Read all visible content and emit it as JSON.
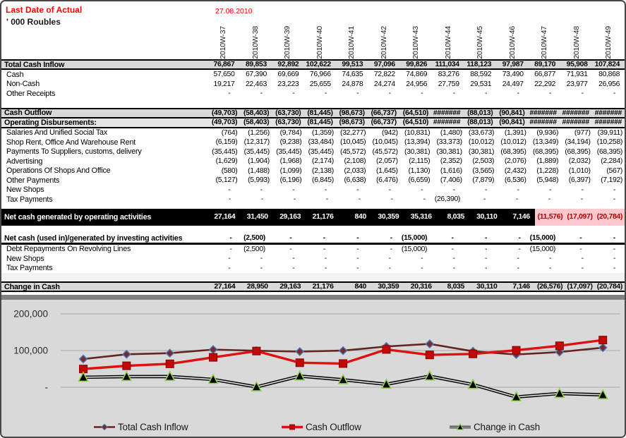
{
  "header": {
    "last_date_label": "Last Date of Actual",
    "last_date_value": "27.08.2010",
    "units": "' 000 Roubles"
  },
  "columns": [
    "2010W-37",
    "2010W-38",
    "2010W-39",
    "2010W-40",
    "2010W-41",
    "2010W-42",
    "2010W-43",
    "2010W-44",
    "2010W-45",
    "2010W-46",
    "2010W-47",
    "2010W-48",
    "2010W-49"
  ],
  "rows": [
    {
      "label": "Total Cash Inflow",
      "type": "section",
      "values": [
        "76,867",
        "89,853",
        "92,892",
        "102,622",
        "99,513",
        "97,096",
        "99,826",
        "111,034",
        "118,123",
        "97,987",
        "89,170",
        "95,908",
        "107,824"
      ]
    },
    {
      "label": "Cash",
      "type": "detail",
      "values": [
        "57,650",
        "67,390",
        "69,669",
        "76,966",
        "74,635",
        "72,822",
        "74,869",
        "83,276",
        "88,592",
        "73,490",
        "66,877",
        "71,931",
        "80,868"
      ]
    },
    {
      "label": "Non-Cash",
      "type": "detail",
      "values": [
        "19,217",
        "22,463",
        "23,223",
        "25,655",
        "24,878",
        "24,274",
        "24,956",
        "27,759",
        "29,531",
        "24,497",
        "22,292",
        "23,977",
        "26,956"
      ]
    },
    {
      "label": "Other Receipts",
      "type": "detail",
      "values": [
        "-",
        "-",
        "-",
        "-",
        "-",
        "-",
        "-",
        "-",
        "-",
        "-",
        "-",
        "-",
        "-"
      ]
    },
    {
      "label": "",
      "type": "spacer",
      "values": []
    },
    {
      "label": "Cash Outflow",
      "type": "section",
      "values": [
        "(49,703)",
        "(58,403)",
        "(63,730)",
        "(81,445)",
        "(98,673)",
        "(66,737)",
        "(64,510)",
        "#######",
        "(88,013)",
        "(90,841)",
        "#######",
        "#######",
        "#######"
      ]
    },
    {
      "label": "Operating Disbursements:",
      "type": "subsection",
      "values": [
        "(49,703)",
        "(58,403)",
        "(63,730)",
        "(81,445)",
        "(98,673)",
        "(66,737)",
        "(64,510)",
        "#######",
        "(88,013)",
        "(90,841)",
        "#######",
        "#######",
        "#######"
      ]
    },
    {
      "label": "Salaries And Unified Social Tax",
      "type": "detail",
      "values": [
        "(764)",
        "(1,256)",
        "(9,784)",
        "(1,359)",
        "(32,277)",
        "(942)",
        "(10,831)",
        "(1,480)",
        "(33,673)",
        "(1,391)",
        "(9,936)",
        "(977)",
        "(39,911)"
      ]
    },
    {
      "label": "Shop Rent, Office And Warehouse Rent",
      "type": "detail",
      "values": [
        "(6,159)",
        "(12,317)",
        "(9,238)",
        "(33,484)",
        "(10,045)",
        "(10,045)",
        "(13,394)",
        "(33,373)",
        "(10,012)",
        "(10,012)",
        "(13,349)",
        "(34,194)",
        "(10,258)"
      ]
    },
    {
      "label": "Payments To Suppliers, customs, delivery",
      "type": "detail",
      "values": [
        "(35,445)",
        "(35,445)",
        "(35,445)",
        "(35,445)",
        "(45,572)",
        "(45,572)",
        "(30,381)",
        "(30,381)",
        "(30,381)",
        "(68,395)",
        "(68,395)",
        "(68,395)",
        "(68,395)"
      ]
    },
    {
      "label": "Advertising",
      "type": "detail",
      "values": [
        "(1,629)",
        "(1,904)",
        "(1,968)",
        "(2,174)",
        "(2,108)",
        "(2,057)",
        "(2,115)",
        "(2,352)",
        "(2,503)",
        "(2,076)",
        "(1,889)",
        "(2,032)",
        "(2,284)"
      ]
    },
    {
      "label": "Operations Of Shops And Office",
      "type": "detail",
      "values": [
        "(580)",
        "(1,488)",
        "(1,099)",
        "(2,138)",
        "(2,033)",
        "(1,645)",
        "(1,130)",
        "(1,616)",
        "(3,565)",
        "(2,432)",
        "(1,228)",
        "(1,010)",
        "(567)"
      ]
    },
    {
      "label": "Other Payments",
      "type": "detail",
      "values": [
        "(5,127)",
        "(5,993)",
        "(6,196)",
        "(6,845)",
        "(6,638)",
        "(6,476)",
        "(6,659)",
        "(7,406)",
        "(7,879)",
        "(6,536)",
        "(5,948)",
        "(6,397)",
        "(7,192)"
      ]
    },
    {
      "label": "New Shops",
      "type": "detail",
      "values": [
        "-",
        "-",
        "-",
        "-",
        "-",
        "-",
        "-",
        "-",
        "-",
        "-",
        "-",
        "-",
        "-"
      ]
    },
    {
      "label": "Tax Payments",
      "type": "detail",
      "values": [
        "-",
        "-",
        "-",
        "-",
        "-",
        "-",
        "-",
        "(26,390)",
        "-",
        "-",
        "-",
        "-",
        "-"
      ]
    },
    {
      "label": "",
      "type": "spacer-sm",
      "values": []
    },
    {
      "label": "Net cash generated by operating activities",
      "type": "black",
      "pink_start": 10,
      "values": [
        "27,164",
        "31,450",
        "29,163",
        "21,176",
        "840",
        "30,359",
        "35,316",
        "8,035",
        "30,110",
        "7,146",
        "(11,576)",
        "(17,097)",
        "(20,784)"
      ]
    },
    {
      "label": "",
      "type": "spacer-md",
      "values": []
    },
    {
      "label": "Net cash (used in)/generated by investing activities",
      "type": "strong",
      "values": [
        "-",
        "(2,500)",
        "-",
        "-",
        "-",
        "-",
        "(15,000)",
        "-",
        "-",
        "-",
        "(15,000)",
        "-",
        "-"
      ]
    },
    {
      "label": "Debt Repayments On Revolving Lines",
      "type": "detail",
      "values": [
        "-",
        "(2,500)",
        "-",
        "-",
        "-",
        "-",
        "(15,000)",
        "-",
        "-",
        "-",
        "(15,000)",
        "-",
        "-"
      ]
    },
    {
      "label": "New Shops",
      "type": "detail",
      "values": [
        "-",
        "-",
        "-",
        "-",
        "-",
        "-",
        "-",
        "-",
        "-",
        "-",
        "-",
        "-",
        "-"
      ]
    },
    {
      "label": "Tax Payments",
      "type": "detail",
      "values": [
        "-",
        "-",
        "-",
        "-",
        "-",
        "-",
        "-",
        "-",
        "-",
        "-",
        "-",
        "-",
        "-"
      ]
    },
    {
      "label": "",
      "type": "spacer-gray",
      "values": []
    },
    {
      "label": "Change in Cash",
      "type": "section",
      "values": [
        "27,164",
        "28,950",
        "29,163",
        "21,176",
        "840",
        "30,359",
        "20,316",
        "8,035",
        "30,110",
        "7,146",
        "(26,576)",
        "(17,097)",
        "(20,784)"
      ]
    }
  ],
  "chart_data": {
    "type": "line",
    "x_labels": [
      "2010W-37",
      "2010W-38",
      "2010W-39",
      "2010W-40",
      "2010W-41",
      "2010W-42",
      "2010W-43",
      "2010W-44",
      "2010W-45",
      "2010W-46",
      "2010W-47",
      "2010W-48",
      "2010W-49"
    ],
    "yticks": [
      {
        "value": 200000,
        "label": "200,000"
      },
      {
        "value": 100000,
        "label": "100,000"
      },
      {
        "value": 0,
        "label": "-"
      }
    ],
    "grid": true,
    "legend_position": "bottom",
    "plot_bg": "#D9D9D9",
    "gridline_color": "#ABABAB",
    "series": [
      {
        "name": "Total Cash Inflow",
        "marker": "diamond",
        "color": "#622423",
        "marker_fill": "#7A2A28",
        "marker_stroke": "#4A7EBB",
        "line_width": 2.6,
        "values": [
          76867,
          89853,
          92892,
          102622,
          99513,
          97096,
          99826,
          111034,
          118123,
          97987,
          89170,
          95908,
          107824
        ]
      },
      {
        "name": "Cash Outflow",
        "marker": "square",
        "color": "#DE1010",
        "marker_fill": "#C00A0A",
        "marker_stroke": "#8B0000",
        "line_width": 3.4,
        "values": [
          49703,
          58403,
          63730,
          81445,
          98673,
          66737,
          64510,
          102999,
          88013,
          90841,
          100746,
          113005,
          128608
        ]
      },
      {
        "name": "Change in Cash",
        "marker": "triangle",
        "color": "#000000",
        "marker_fill": "#000000",
        "marker_stroke": "#92D050",
        "line_width": 4.6,
        "double_line": true,
        "values": [
          27164,
          28950,
          29163,
          21176,
          840,
          30359,
          20316,
          8035,
          30110,
          7146,
          -26576,
          -17097,
          -20784
        ]
      }
    ]
  }
}
